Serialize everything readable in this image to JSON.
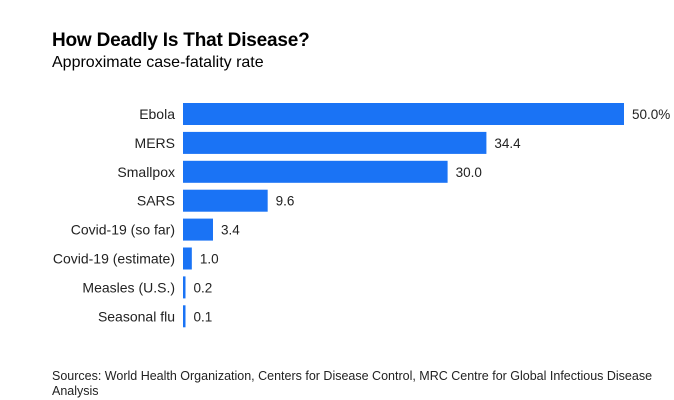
{
  "chart_data": {
    "type": "bar",
    "orientation": "horizontal",
    "title": "How Deadly Is That Disease?",
    "subtitle": "Approximate case-fatality rate",
    "categories": [
      "Ebola",
      "MERS",
      "Smallpox",
      "SARS",
      "Covid-19 (so far)",
      "Covid-19 (estimate)",
      "Measles (U.S.)",
      "Seasonal flu"
    ],
    "values": [
      50.0,
      34.4,
      30.0,
      9.6,
      3.4,
      1.0,
      0.2,
      0.1
    ],
    "value_labels": [
      "50.0%",
      "34.4",
      "30.0",
      "9.6",
      "3.4",
      "1.0",
      "0.2",
      "0.1"
    ],
    "xlim": [
      0,
      50
    ],
    "bar_color": "#1a73f5",
    "grid": false
  },
  "source": "Sources: World Health Organization, Centers for Disease Control, MRC Centre for Global Infectious Disease Analysis"
}
